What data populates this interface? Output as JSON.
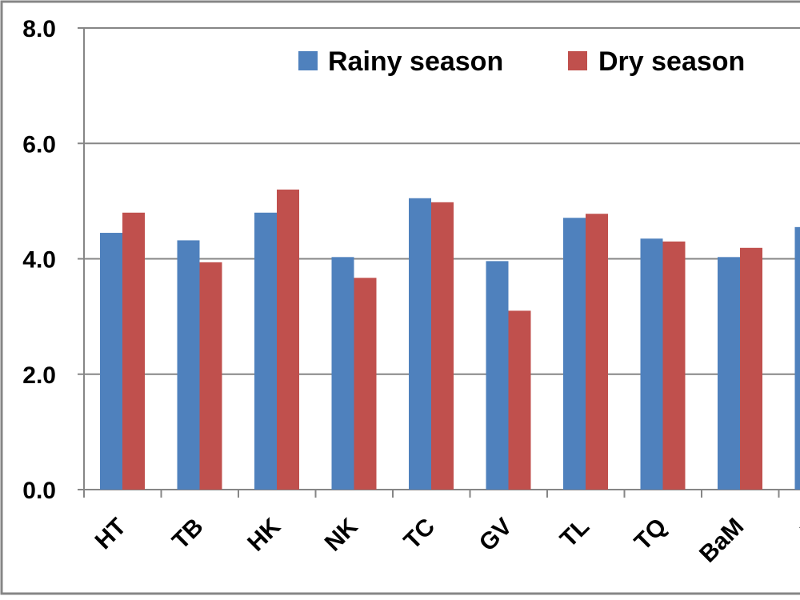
{
  "chart_data": {
    "type": "bar",
    "title": "",
    "xlabel": "",
    "ylabel": "",
    "categories": [
      "HT",
      "TB",
      "HK",
      "NK",
      "TC",
      "GV",
      "TL",
      "TQ",
      "BaM",
      "B"
    ],
    "series": [
      {
        "name": "Rainy season",
        "color": "#4f81bd",
        "values": [
          4.45,
          4.32,
          4.8,
          4.03,
          5.05,
          3.96,
          4.71,
          4.35,
          4.03,
          4.55
        ]
      },
      {
        "name": "Dry season",
        "color": "#c0504d",
        "values": [
          4.8,
          3.94,
          5.2,
          3.67,
          4.98,
          3.1,
          4.78,
          4.3,
          4.19,
          null
        ]
      }
    ],
    "ylim": [
      0,
      8
    ],
    "yticks": [
      "0.0",
      "2.0",
      "4.0",
      "6.0",
      "8.0"
    ],
    "grid": true,
    "legend_position": "top-right"
  }
}
